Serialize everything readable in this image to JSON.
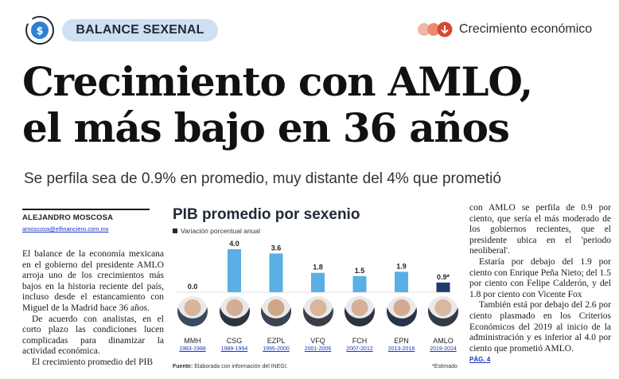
{
  "header": {
    "section": "BALANCE SEXENAL",
    "category": "Crecimiento económico"
  },
  "headline": {
    "line1": "Crecimiento con AMLO,",
    "line2": "el más bajo en 36 años"
  },
  "subhead": "Se perfila sea de 0.9% en promedio, muy distante del 4% que prometió",
  "byline": {
    "author": "ALEJANDRO MOSCOSA",
    "email": "amoscosa@elfinanciero.com.mx"
  },
  "left_column": [
    "El balance de la economía mexicana en el gobierno del presidente AMLO arroja uno de los crecimientos más bajos en la historia reciente del país, incluso desde el estancamiento con Miguel de la Madrid hace 36 años.",
    "De acuerdo con analistas, en el corto plazo las condiciones lucen complicadas para dinamizar la actividad económica.",
    "El crecimiento promedio del PIB"
  ],
  "right_column": [
    "con AMLO se perfila de 0.9 por ciento, que sería el más moderado de los gobiernos recientes, que el presidente ubica en el 'periodo neoliberal'.",
    "Estaría por debajo del 1.9 por ciento con Enrique Peña Nieto; del 1.5 por ciento con Felipe Calderón, y del 1.8 por ciento con Vicente Fox",
    "También está por debajo del 2.6 por ciento plasmado en los Criterios Económicos del 2019 al inicio de la administración y es inferior al 4.0 por ciento que prometió AMLO."
  ],
  "page_ref": "PÁG. 4",
  "chart_data": {
    "type": "bar",
    "title": "PIB promedio por sexenio",
    "legend": "Variación porcentual anual",
    "categories": [
      "MMH",
      "CSG",
      "EZPL",
      "VFQ",
      "FCH",
      "EPN",
      "AMLO"
    ],
    "periods": [
      "1983-1988",
      "1989-1994",
      "1995-2000",
      "2001-2006",
      "2007-2012",
      "2013-2018",
      "2019-2024"
    ],
    "values": [
      0.0,
      4.0,
      3.6,
      1.8,
      1.5,
      1.9,
      0.9
    ],
    "value_labels": [
      "0.0",
      "4.0",
      "3.6",
      "1.8",
      "1.5",
      "1.9",
      "0.9*"
    ],
    "ylim": [
      0,
      4.2
    ],
    "colors": {
      "bar": "#5aaee5",
      "highlight": "#1f3a6e"
    },
    "source_label": "Fuente:",
    "source": "Elaborada con información del INEGI.",
    "note": "*Estimado"
  }
}
